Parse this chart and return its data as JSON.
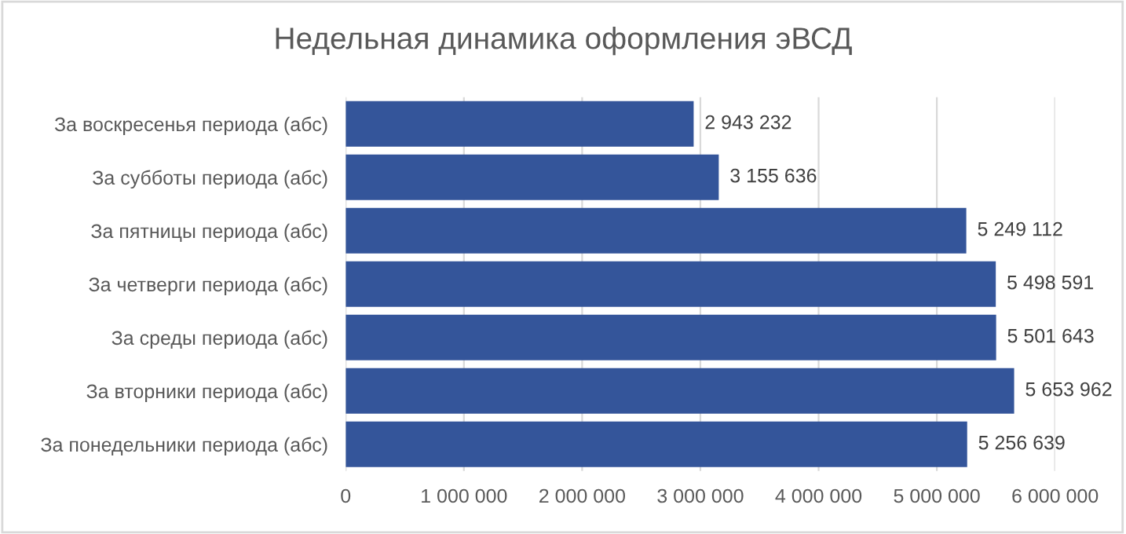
{
  "chart_data": {
    "type": "bar",
    "orientation": "horizontal",
    "title": "Недельная динамика оформления эВСД",
    "categories": [
      "За воскресенья периода (абс)",
      "За субботы периода (абс)",
      "За пятницы периода (абс)",
      "За четверги периода (абс)",
      "За среды периода (абс)",
      "За вторники периода (абс)",
      "За понедельники периода (абс)"
    ],
    "values": [
      2943232,
      3155636,
      5249112,
      5498591,
      5501643,
      5653962,
      5256639
    ],
    "value_labels": [
      "2 943 232",
      "3 155 636",
      "5 249 112",
      "5 498 591",
      "5 501 643",
      "5 653 962",
      "5 256 639"
    ],
    "color": "#34559a",
    "xlim": [
      0,
      6000000
    ],
    "xticks": [
      0,
      {
        "value": 1000000,
        "label": "1 000 000"
      },
      {
        "value": 2000000,
        "label": "2 000 000"
      },
      {
        "value": 3000000,
        "label": "3 000 000"
      },
      {
        "value": 4000000,
        "label": "4 000 000"
      },
      {
        "value": 5000000,
        "label": "5 000 000"
      },
      {
        "value": 6000000,
        "label": "6 000 000"
      }
    ],
    "grid": "x",
    "legend": false
  }
}
